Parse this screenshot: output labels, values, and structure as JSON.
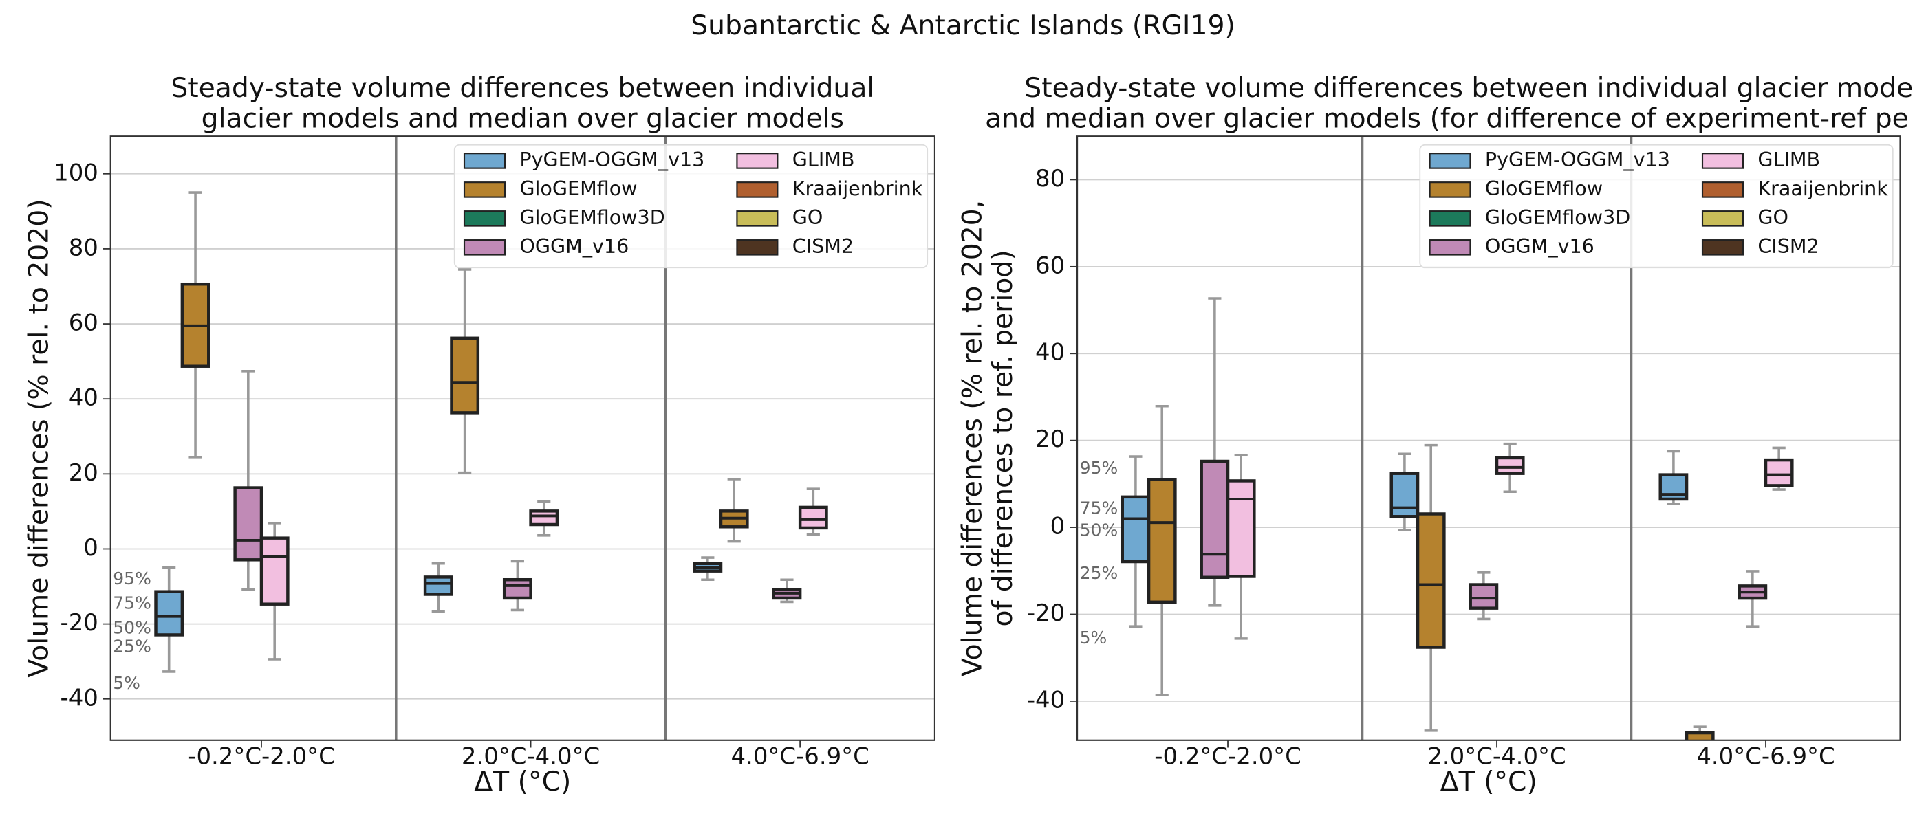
{
  "title": "Subantarctic & Antarctic Islands (RGI19)",
  "chart_data": [
    {
      "type": "box",
      "title": [
        "Steady-state volume differences between individual",
        "glacier models and median over glacier models"
      ],
      "ylabel": [
        "Volume differences (% rel. to 2020)"
      ],
      "xlabel": "ΔT (°C)",
      "categories": [
        "-0.2°C-2.0°C",
        "2.0°C-4.0°C",
        "4.0°C-6.9°C"
      ],
      "ylim": [
        -51,
        110
      ],
      "yticks": [
        -40,
        -20,
        0,
        20,
        40,
        60,
        80,
        100
      ],
      "grid": true,
      "legend": "upper right",
      "percentile_labels": [
        "5%",
        "25%",
        "50%",
        "75%",
        "95%"
      ],
      "series": [
        {
          "name": "PyGEM-OGGM_v13",
          "color": "#6fa8d0",
          "values": [
            [
              -32.7,
              -22.9,
              -18,
              -11.4,
              -4.9
            ],
            [
              -16.7,
              -12.1,
              -9.2,
              -7.5,
              -3.9
            ],
            [
              -8.2,
              -5.9,
              -4.9,
              -3.9,
              -2.3
            ]
          ]
        },
        {
          "name": "GloGEMflow",
          "color": "#b5822e",
          "values": [
            [
              24.5,
              48.7,
              59.5,
              70.6,
              95
            ],
            [
              20.3,
              36.3,
              44.4,
              56.2,
              74.5
            ],
            [
              2.0,
              5.9,
              8.2,
              10.1,
              18.6
            ]
          ]
        },
        {
          "name": "GloGEMflow3D",
          "color": "#1c7a5b",
          "values": [
            null,
            null,
            null
          ]
        },
        {
          "name": "OGGM_v16",
          "color": "#c08ab6",
          "values": [
            [
              -10.8,
              -2.9,
              2.3,
              16.3,
              47.4
            ],
            [
              -16.3,
              -13.1,
              -9.8,
              -8.2,
              -3.3
            ],
            [
              -14.1,
              -13.1,
              -11.8,
              -10.8,
              -8.2
            ]
          ]
        },
        {
          "name": "GLIMB",
          "color": "#f2bfe0",
          "values": [
            [
              -29.4,
              -14.7,
              -2,
              2.9,
              6.9
            ],
            [
              3.6,
              6.5,
              8.8,
              10.1,
              12.7
            ],
            [
              3.9,
              5.6,
              7.8,
              11.1,
              16.0
            ]
          ]
        },
        {
          "name": "Kraaijenbrink",
          "color": "#b05f2f",
          "values": [
            null,
            null,
            null
          ]
        },
        {
          "name": "GO",
          "color": "#c9bd59",
          "values": [
            null,
            null,
            null
          ]
        },
        {
          "name": "CISM2",
          "color": "#4e3421",
          "values": [
            null,
            null,
            null
          ]
        }
      ]
    },
    {
      "type": "box",
      "title": [
        "Steady-state volume differences between individual glacier mode",
        "and median over glacier models (for difference of experiment-ref pe"
      ],
      "ylabel": [
        "Volume differences (% rel. to 2020,",
        "of differences to ref. period)"
      ],
      "xlabel": "ΔT (°C)",
      "categories": [
        "-0.2°C-2.0°C",
        "2.0°C-4.0°C",
        "4.0°C-6.9°C"
      ],
      "ylim": [
        -49,
        90
      ],
      "yticks": [
        -40,
        -20,
        0,
        20,
        40,
        60,
        80
      ],
      "grid": true,
      "legend": "upper right",
      "percentile_labels": [
        "5%",
        "25%",
        "50%",
        "75%",
        "95%"
      ],
      "series": [
        {
          "name": "PyGEM-OGGM_v13",
          "color": "#6fa8d0",
          "values": [
            [
              -22.8,
              -7.9,
              2,
              7.0,
              16.3
            ],
            [
              -0.6,
              2.5,
              4.5,
              12.4,
              16.9
            ],
            [
              5.4,
              6.5,
              7.6,
              12.1,
              17.5
            ]
          ]
        },
        {
          "name": "GloGEMflow",
          "color": "#b5822e",
          "values": [
            [
              -38.6,
              -17.2,
              1.1,
              11,
              27.9
            ],
            [
              -46.8,
              -27.6,
              -13.2,
              3.1,
              18.9
            ],
            [
              -56,
              -52,
              -50,
              -47.3,
              -45.9
            ]
          ]
        },
        {
          "name": "GloGEMflow3D",
          "color": "#1c7a5b",
          "values": [
            null,
            null,
            null
          ]
        },
        {
          "name": "OGGM_v16",
          "color": "#c08ab6",
          "values": [
            [
              -18,
              -11.5,
              -6.2,
              15.2,
              52.7
            ],
            [
              -21.1,
              -18.6,
              -16.3,
              -13.2,
              -10.4
            ],
            [
              -22.8,
              -16.3,
              -14.9,
              -13.5,
              -10.1
            ]
          ]
        },
        {
          "name": "GLIMB",
          "color": "#f2bfe0",
          "values": [
            [
              -25.6,
              -11.3,
              6.5,
              10.7,
              16.6
            ],
            [
              8.2,
              12.4,
              13.8,
              16,
              19.2
            ],
            [
              8.7,
              9.6,
              12.1,
              15.5,
              18.3
            ]
          ]
        },
        {
          "name": "Kraaijenbrink",
          "color": "#b05f2f",
          "values": [
            null,
            null,
            null
          ]
        },
        {
          "name": "GO",
          "color": "#c9bd59",
          "values": [
            null,
            null,
            null
          ]
        },
        {
          "name": "CISM2",
          "color": "#4e3421",
          "values": [
            null,
            null,
            null
          ]
        }
      ]
    }
  ]
}
